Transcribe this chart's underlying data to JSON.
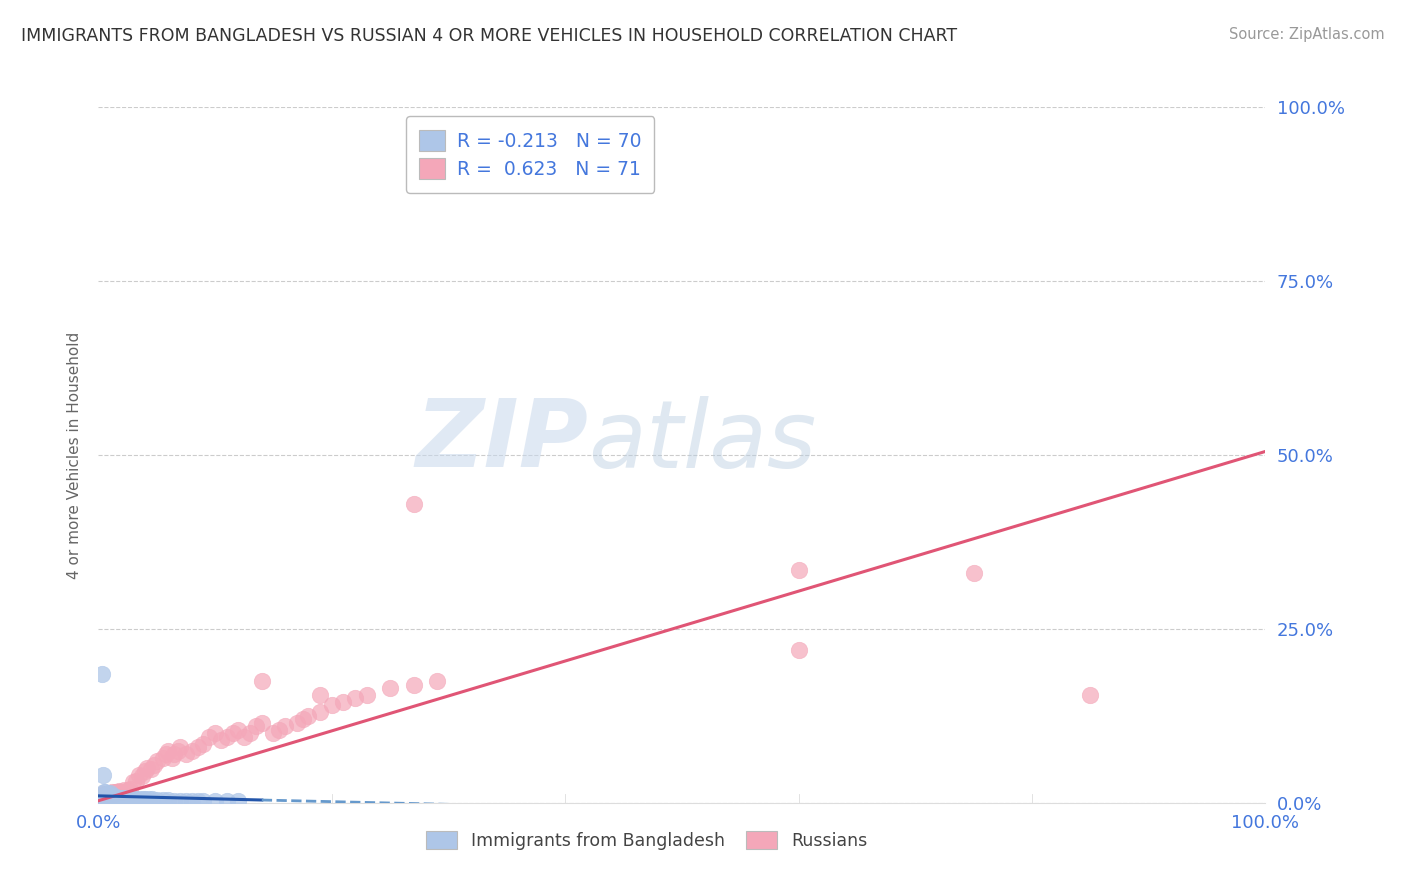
{
  "title": "IMMIGRANTS FROM BANGLADESH VS RUSSIAN 4 OR MORE VEHICLES IN HOUSEHOLD CORRELATION CHART",
  "source": "Source: ZipAtlas.com",
  "ylabel": "4 or more Vehicles in Household",
  "xlim": [
    0.0,
    1.0
  ],
  "ylim": [
    0.0,
    1.0
  ],
  "xtick_labels": [
    "0.0%",
    "100.0%"
  ],
  "ytick_labels": [
    "0.0%",
    "25.0%",
    "50.0%",
    "75.0%",
    "100.0%"
  ],
  "ytick_positions": [
    0.0,
    0.25,
    0.5,
    0.75,
    1.0
  ],
  "legend_blue_label": "Immigrants from Bangladesh",
  "legend_pink_label": "Russians",
  "r_blue": -0.213,
  "n_blue": 70,
  "r_pink": 0.623,
  "n_pink": 71,
  "color_blue": "#aec6e8",
  "color_pink": "#f4a7b9",
  "line_blue_solid": "#2255aa",
  "line_blue_dash": "#6699cc",
  "line_pink": "#e05575",
  "watermark_zip": "ZIP",
  "watermark_atlas": "atlas",
  "title_color": "#333333",
  "axis_label_color": "#4477dd",
  "background_color": "#ffffff",
  "blue_x": [
    0.002,
    0.003,
    0.004,
    0.004,
    0.005,
    0.005,
    0.005,
    0.006,
    0.006,
    0.007,
    0.007,
    0.007,
    0.008,
    0.008,
    0.008,
    0.009,
    0.009,
    0.009,
    0.01,
    0.01,
    0.01,
    0.011,
    0.011,
    0.012,
    0.012,
    0.013,
    0.013,
    0.014,
    0.015,
    0.016,
    0.017,
    0.018,
    0.019,
    0.02,
    0.021,
    0.022,
    0.023,
    0.025,
    0.026,
    0.027,
    0.028,
    0.03,
    0.032,
    0.035,
    0.038,
    0.04,
    0.043,
    0.046,
    0.05,
    0.055,
    0.06,
    0.065,
    0.07,
    0.075,
    0.08,
    0.085,
    0.09,
    0.1,
    0.11,
    0.12,
    0.003,
    0.004,
    0.005,
    0.006,
    0.007,
    0.008,
    0.009,
    0.01,
    0.011,
    0.012
  ],
  "blue_y": [
    0.002,
    0.005,
    0.003,
    0.008,
    0.004,
    0.007,
    0.01,
    0.003,
    0.006,
    0.004,
    0.008,
    0.012,
    0.003,
    0.007,
    0.01,
    0.004,
    0.008,
    0.013,
    0.005,
    0.009,
    0.014,
    0.006,
    0.01,
    0.005,
    0.009,
    0.006,
    0.01,
    0.007,
    0.006,
    0.007,
    0.006,
    0.007,
    0.006,
    0.007,
    0.006,
    0.006,
    0.007,
    0.006,
    0.006,
    0.006,
    0.006,
    0.005,
    0.005,
    0.005,
    0.005,
    0.005,
    0.005,
    0.005,
    0.004,
    0.004,
    0.004,
    0.003,
    0.003,
    0.003,
    0.003,
    0.003,
    0.003,
    0.003,
    0.002,
    0.002,
    0.185,
    0.04,
    0.015,
    0.015,
    0.012,
    0.01,
    0.008,
    0.006,
    0.005,
    0.004
  ],
  "pink_x": [
    0.003,
    0.004,
    0.005,
    0.006,
    0.007,
    0.008,
    0.009,
    0.01,
    0.011,
    0.012,
    0.013,
    0.014,
    0.015,
    0.016,
    0.017,
    0.018,
    0.02,
    0.022,
    0.025,
    0.027,
    0.03,
    0.032,
    0.035,
    0.037,
    0.04,
    0.042,
    0.045,
    0.048,
    0.05,
    0.055,
    0.058,
    0.06,
    0.063,
    0.065,
    0.068,
    0.07,
    0.075,
    0.08,
    0.085,
    0.09,
    0.095,
    0.1,
    0.105,
    0.11,
    0.115,
    0.12,
    0.125,
    0.13,
    0.135,
    0.14,
    0.15,
    0.155,
    0.16,
    0.17,
    0.175,
    0.18,
    0.19,
    0.2,
    0.21,
    0.22,
    0.23,
    0.25,
    0.27,
    0.29,
    0.6,
    0.75,
    0.85,
    0.6,
    0.27,
    0.19,
    0.14
  ],
  "pink_y": [
    0.01,
    0.012,
    0.01,
    0.013,
    0.011,
    0.013,
    0.012,
    0.014,
    0.013,
    0.015,
    0.013,
    0.015,
    0.014,
    0.016,
    0.015,
    0.017,
    0.016,
    0.018,
    0.019,
    0.02,
    0.03,
    0.032,
    0.04,
    0.038,
    0.045,
    0.05,
    0.048,
    0.055,
    0.06,
    0.065,
    0.07,
    0.075,
    0.065,
    0.07,
    0.075,
    0.08,
    0.07,
    0.075,
    0.08,
    0.085,
    0.095,
    0.1,
    0.09,
    0.095,
    0.1,
    0.105,
    0.095,
    0.1,
    0.11,
    0.115,
    0.1,
    0.105,
    0.11,
    0.115,
    0.12,
    0.125,
    0.13,
    0.14,
    0.145,
    0.15,
    0.155,
    0.165,
    0.17,
    0.175,
    0.335,
    0.33,
    0.155,
    0.22,
    0.43,
    0.155,
    0.175
  ],
  "pink_line_x0": 0.0,
  "pink_line_y0": 0.003,
  "pink_line_x1": 1.0,
  "pink_line_y1": 0.505,
  "blue_line_solid_x0": 0.0,
  "blue_line_solid_y0": 0.01,
  "blue_line_solid_x1": 0.14,
  "blue_line_solid_y1": 0.004,
  "blue_line_dash_x0": 0.14,
  "blue_line_dash_y0": 0.004,
  "blue_line_dash_x1": 0.32,
  "blue_line_dash_y1": -0.003
}
